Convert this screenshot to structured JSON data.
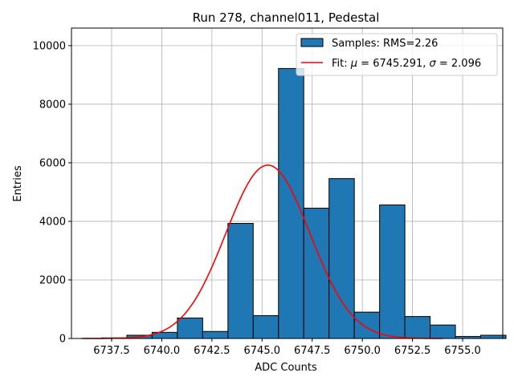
{
  "chart_data": {
    "type": "bar",
    "title": "Run 278, channel011, Pedestal",
    "xlabel": "ADC Counts",
    "ylabel": "Entries",
    "xlim": [
      6735.5,
      6757.0
    ],
    "ylim": [
      0,
      10600
    ],
    "xticks": [
      6737.5,
      6740.0,
      6742.5,
      6745.0,
      6747.5,
      6750.0,
      6752.5,
      6755.0
    ],
    "xtick_labels": [
      "6737.5",
      "6740.0",
      "6742.5",
      "6745.0",
      "6747.5",
      "6750.0",
      "6752.5",
      "6755.0"
    ],
    "yticks": [
      0,
      2000,
      4000,
      6000,
      8000,
      10000
    ],
    "ytick_labels": [
      "0",
      "2000",
      "4000",
      "6000",
      "8000",
      "10000"
    ],
    "grid": true,
    "legend_position": "top-right",
    "bar_color": "#1f77b4",
    "fit_color": "#ff0000",
    "bins": [
      {
        "left": 6737.0,
        "right": 6738.26,
        "value": 20
      },
      {
        "left": 6738.26,
        "right": 6739.52,
        "value": 110
      },
      {
        "left": 6739.52,
        "right": 6740.78,
        "value": 210
      },
      {
        "left": 6740.78,
        "right": 6742.04,
        "value": 700
      },
      {
        "left": 6742.04,
        "right": 6743.3,
        "value": 240
      },
      {
        "left": 6743.3,
        "right": 6744.56,
        "value": 3930
      },
      {
        "left": 6744.56,
        "right": 6745.82,
        "value": 780
      },
      {
        "left": 6745.82,
        "right": 6747.08,
        "value": 9220
      },
      {
        "left": 6747.08,
        "right": 6748.34,
        "value": 4450
      },
      {
        "left": 6748.34,
        "right": 6749.6,
        "value": 5460
      },
      {
        "left": 6749.6,
        "right": 6750.86,
        "value": 900
      },
      {
        "left": 6750.86,
        "right": 6752.12,
        "value": 4560
      },
      {
        "left": 6752.12,
        "right": 6753.38,
        "value": 750
      },
      {
        "left": 6753.38,
        "right": 6754.64,
        "value": 460
      },
      {
        "left": 6754.64,
        "right": 6755.9,
        "value": 70
      },
      {
        "left": 6755.9,
        "right": 6757.16,
        "value": 110
      }
    ],
    "fit": {
      "mu": 6745.291,
      "sigma": 2.096,
      "amplitude": 5920,
      "x_range": [
        6736.0,
        6754.0
      ]
    },
    "legend": [
      {
        "kind": "patch",
        "label": "Samples: RMS=2.26"
      },
      {
        "kind": "line",
        "prefix": "Fit: ",
        "mu_symbol": "μ",
        "mu_text": " = 6745.291, ",
        "sigma_symbol": "σ",
        "sigma_text": " = 2.096"
      }
    ]
  }
}
